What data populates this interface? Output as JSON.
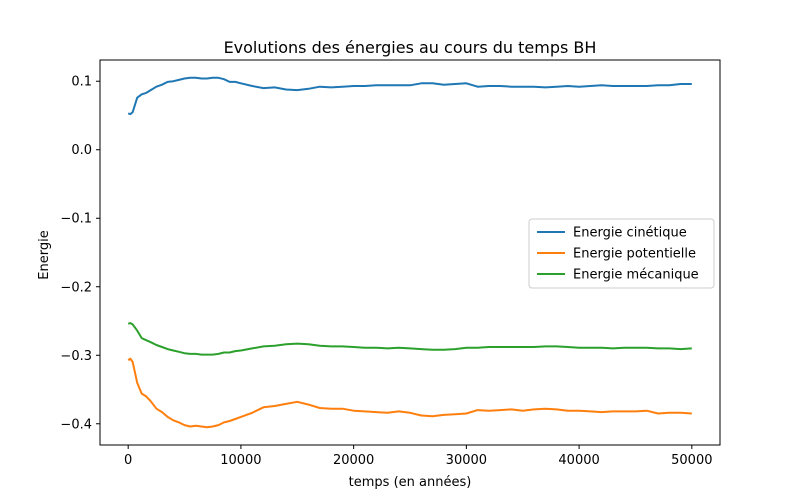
{
  "chart_data": {
    "type": "line",
    "title": "Evolutions des énergies au cours du temps BH",
    "xlabel": "temps (en années)",
    "ylabel": "Energie",
    "xlim": [
      -2500,
      52500
    ],
    "ylim": [
      -0.431,
      0.131
    ],
    "x_ticks": [
      0,
      10000,
      20000,
      30000,
      40000,
      50000
    ],
    "x_tick_labels": [
      "0",
      "10000",
      "20000",
      "30000",
      "40000",
      "50000"
    ],
    "y_ticks": [
      0.1,
      0.0,
      -0.1,
      -0.2,
      -0.3,
      -0.4
    ],
    "y_tick_labels": [
      "0.1",
      "0.0",
      "−0.1",
      "−0.2",
      "−0.3",
      "−0.4"
    ],
    "grid": false,
    "legend_position": "center-right",
    "series": [
      {
        "name": "Energie cinétique",
        "color": "#1f77b4",
        "x": [
          0,
          200,
          400,
          800,
          1200,
          1600,
          2000,
          2500,
          3000,
          3500,
          4000,
          4500,
          5000,
          5500,
          6000,
          6500,
          7000,
          7500,
          8000,
          8500,
          9000,
          9500,
          10000,
          11000,
          12000,
          13000,
          14000,
          15000,
          16000,
          17000,
          18000,
          19000,
          20000,
          21000,
          22000,
          23000,
          24000,
          25000,
          26000,
          27000,
          28000,
          29000,
          30000,
          31000,
          32000,
          33000,
          34000,
          35000,
          36000,
          37000,
          38000,
          39000,
          40000,
          41000,
          42000,
          43000,
          44000,
          45000,
          46000,
          47000,
          48000,
          49000,
          50000
        ],
        "values": [
          0.053,
          0.052,
          0.055,
          0.076,
          0.081,
          0.083,
          0.087,
          0.092,
          0.095,
          0.099,
          0.1,
          0.102,
          0.104,
          0.105,
          0.105,
          0.104,
          0.104,
          0.105,
          0.105,
          0.103,
          0.099,
          0.099,
          0.097,
          0.093,
          0.09,
          0.091,
          0.088,
          0.087,
          0.089,
          0.092,
          0.091,
          0.092,
          0.093,
          0.093,
          0.094,
          0.094,
          0.094,
          0.094,
          0.097,
          0.097,
          0.095,
          0.096,
          0.097,
          0.092,
          0.093,
          0.093,
          0.092,
          0.092,
          0.092,
          0.091,
          0.092,
          0.093,
          0.092,
          0.093,
          0.094,
          0.093,
          0.093,
          0.093,
          0.093,
          0.094,
          0.094,
          0.096,
          0.096
        ]
      },
      {
        "name": "Energie potentielle",
        "color": "#ff7f0e",
        "x": [
          0,
          200,
          400,
          800,
          1200,
          1600,
          2000,
          2500,
          3000,
          3500,
          4000,
          4500,
          5000,
          5500,
          6000,
          6500,
          7000,
          7500,
          8000,
          8500,
          9000,
          9500,
          10000,
          11000,
          12000,
          13000,
          14000,
          15000,
          16000,
          17000,
          18000,
          19000,
          20000,
          21000,
          22000,
          23000,
          24000,
          25000,
          26000,
          27000,
          28000,
          29000,
          30000,
          31000,
          32000,
          33000,
          34000,
          35000,
          36000,
          37000,
          38000,
          39000,
          40000,
          41000,
          42000,
          43000,
          44000,
          45000,
          46000,
          47000,
          48000,
          49000,
          50000
        ],
        "values": [
          -0.307,
          -0.305,
          -0.31,
          -0.34,
          -0.356,
          -0.36,
          -0.367,
          -0.378,
          -0.383,
          -0.39,
          -0.395,
          -0.398,
          -0.402,
          -0.404,
          -0.403,
          -0.404,
          -0.405,
          -0.404,
          -0.402,
          -0.398,
          -0.396,
          -0.393,
          -0.39,
          -0.384,
          -0.376,
          -0.374,
          -0.371,
          -0.368,
          -0.372,
          -0.377,
          -0.378,
          -0.378,
          -0.381,
          -0.382,
          -0.383,
          -0.384,
          -0.382,
          -0.384,
          -0.388,
          -0.389,
          -0.387,
          -0.386,
          -0.385,
          -0.38,
          -0.381,
          -0.38,
          -0.379,
          -0.381,
          -0.379,
          -0.378,
          -0.379,
          -0.381,
          -0.381,
          -0.382,
          -0.383,
          -0.382,
          -0.382,
          -0.382,
          -0.381,
          -0.385,
          -0.384,
          -0.384,
          -0.385
        ]
      },
      {
        "name": "Energie mécanique",
        "color": "#2ca02c",
        "x": [
          0,
          200,
          400,
          800,
          1200,
          1600,
          2000,
          2500,
          3000,
          3500,
          4000,
          4500,
          5000,
          5500,
          6000,
          6500,
          7000,
          7500,
          8000,
          8500,
          9000,
          9500,
          10000,
          11000,
          12000,
          13000,
          14000,
          15000,
          16000,
          17000,
          18000,
          19000,
          20000,
          21000,
          22000,
          23000,
          24000,
          25000,
          26000,
          27000,
          28000,
          29000,
          30000,
          31000,
          32000,
          33000,
          34000,
          35000,
          36000,
          37000,
          38000,
          39000,
          40000,
          41000,
          42000,
          43000,
          44000,
          45000,
          46000,
          47000,
          48000,
          49000,
          50000
        ],
        "values": [
          -0.254,
          -0.253,
          -0.255,
          -0.264,
          -0.275,
          -0.278,
          -0.281,
          -0.285,
          -0.288,
          -0.291,
          -0.293,
          -0.295,
          -0.297,
          -0.298,
          -0.298,
          -0.299,
          -0.299,
          -0.299,
          -0.298,
          -0.296,
          -0.296,
          -0.294,
          -0.293,
          -0.29,
          -0.287,
          -0.286,
          -0.284,
          -0.283,
          -0.284,
          -0.286,
          -0.287,
          -0.287,
          -0.288,
          -0.289,
          -0.289,
          -0.29,
          -0.289,
          -0.29,
          -0.291,
          -0.292,
          -0.292,
          -0.291,
          -0.289,
          -0.289,
          -0.288,
          -0.288,
          -0.288,
          -0.288,
          -0.288,
          -0.287,
          -0.287,
          -0.288,
          -0.289,
          -0.289,
          -0.289,
          -0.29,
          -0.289,
          -0.289,
          -0.289,
          -0.29,
          -0.29,
          -0.291,
          -0.29
        ]
      }
    ]
  }
}
